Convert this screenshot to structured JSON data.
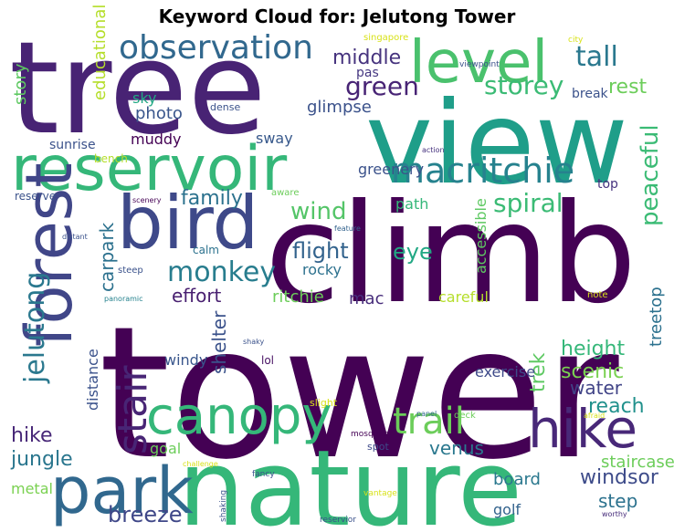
{
  "chart_data": {
    "type": "wordcloud",
    "title": "Keyword Cloud for: Jelutong Tower",
    "colormap": "viridis",
    "background": "#ffffff",
    "words": [
      {
        "text": "tower",
        "color": "#440154"
      },
      {
        "text": "tree",
        "color": "#482374"
      },
      {
        "text": "climb",
        "color": "#440154"
      },
      {
        "text": "view",
        "color": "#1f9e89"
      },
      {
        "text": "nature",
        "color": "#35b779"
      },
      {
        "text": "reservoir",
        "color": "#35b779"
      },
      {
        "text": "bird",
        "color": "#3e4989"
      },
      {
        "text": "forest",
        "color": "#404688"
      },
      {
        "text": "level",
        "color": "#4ac16d"
      },
      {
        "text": "park",
        "color": "#31688e"
      },
      {
        "text": "canopy",
        "color": "#35b779"
      },
      {
        "text": "hike",
        "color": "#482878"
      },
      {
        "text": "observation",
        "color": "#31688e"
      },
      {
        "text": "macritchie",
        "color": "#26828e"
      },
      {
        "text": "trail",
        "color": "#6ccd5a"
      },
      {
        "text": "stair",
        "color": "#482575"
      },
      {
        "text": "monkey",
        "color": "#287d8e"
      },
      {
        "text": "jelutong",
        "color": "#2a788e"
      },
      {
        "text": "tall",
        "color": "#2a788e"
      },
      {
        "text": "green",
        "color": "#482475"
      },
      {
        "text": "storey",
        "color": "#3bbb75"
      },
      {
        "text": "spiral",
        "color": "#3bbb75"
      },
      {
        "text": "peaceful",
        "color": "#3bbb75"
      },
      {
        "text": "family",
        "color": "#2c728e"
      },
      {
        "text": "wind",
        "color": "#54c568"
      },
      {
        "text": "flight",
        "color": "#33638d"
      },
      {
        "text": "eye",
        "color": "#22a884"
      },
      {
        "text": "middle",
        "color": "#46337e"
      },
      {
        "text": "rest",
        "color": "#6ccd5a"
      },
      {
        "text": "effort",
        "color": "#481f70"
      },
      {
        "text": "carpark",
        "color": "#2c718e"
      },
      {
        "text": "hike",
        "color": "#482878"
      },
      {
        "text": "jungle",
        "color": "#2a768e"
      },
      {
        "text": "breeze",
        "color": "#3f4788"
      },
      {
        "text": "venus",
        "color": "#2a788e"
      },
      {
        "text": "windsor",
        "color": "#3e4c8a"
      },
      {
        "text": "step",
        "color": "#2c728e"
      },
      {
        "text": "height",
        "color": "#35b779"
      },
      {
        "text": "scenic",
        "color": "#7ad151"
      },
      {
        "text": "water",
        "color": "#414487"
      },
      {
        "text": "reach",
        "color": "#21918c"
      },
      {
        "text": "trek",
        "color": "#5ec962"
      },
      {
        "text": "treetop",
        "color": "#2c718e"
      },
      {
        "text": "shelter",
        "color": "#3b528b"
      },
      {
        "text": "distance",
        "color": "#3b528b"
      },
      {
        "text": "staircase",
        "color": "#6ccd5a"
      },
      {
        "text": "board",
        "color": "#2a788e"
      },
      {
        "text": "golf",
        "color": "#33638d"
      },
      {
        "text": "metal",
        "color": "#7ad151"
      },
      {
        "text": "goal",
        "color": "#6ccd5a"
      },
      {
        "text": "educational",
        "color": "#b5de2b"
      },
      {
        "text": "story",
        "color": "#5ec962"
      },
      {
        "text": "sky",
        "color": "#22a884"
      },
      {
        "text": "photo",
        "color": "#39568c"
      },
      {
        "text": "muddy",
        "color": "#440154"
      },
      {
        "text": "glimpse",
        "color": "#3b528b"
      },
      {
        "text": "sway",
        "color": "#38598c"
      },
      {
        "text": "pas",
        "color": "#453781"
      },
      {
        "text": "break",
        "color": "#3b528b"
      },
      {
        "text": "greenery",
        "color": "#3b528b"
      },
      {
        "text": "top",
        "color": "#46327e"
      },
      {
        "text": "path",
        "color": "#35b779"
      },
      {
        "text": "rocky",
        "color": "#2c718e"
      },
      {
        "text": "ritchie",
        "color": "#6ccd5a"
      },
      {
        "text": "mac",
        "color": "#472d7b"
      },
      {
        "text": "careful",
        "color": "#b5de2b"
      },
      {
        "text": "accessible",
        "color": "#5ec962"
      },
      {
        "text": "exercise",
        "color": "#3e4a89"
      },
      {
        "text": "windy",
        "color": "#39568c"
      },
      {
        "text": "lol",
        "color": "#471063"
      },
      {
        "text": "calm",
        "color": "#2c728e"
      },
      {
        "text": "reserve",
        "color": "#3b528b"
      },
      {
        "text": "sunrise",
        "color": "#3b528b"
      },
      {
        "text": "bench",
        "color": "#b5de2b"
      },
      {
        "text": "dense",
        "color": "#3b528b"
      },
      {
        "text": "singapore",
        "color": "#d8e219"
      },
      {
        "text": "city",
        "color": "#d8e219"
      },
      {
        "text": "viewpoint",
        "color": "#3b528b"
      },
      {
        "text": "move",
        "color": "#482475"
      },
      {
        "text": "action",
        "color": "#46327e"
      },
      {
        "text": "aware",
        "color": "#6ccd5a"
      },
      {
        "text": "scenery",
        "color": "#440154"
      },
      {
        "text": "feature",
        "color": "#33638d"
      },
      {
        "text": "distant",
        "color": "#3b528b"
      },
      {
        "text": "steep",
        "color": "#3b528b"
      },
      {
        "text": "note",
        "color": "#d8e219"
      },
      {
        "text": "panoramic",
        "color": "#26828e"
      },
      {
        "text": "shaky",
        "color": "#3b528b"
      },
      {
        "text": "slight",
        "color": "#d8e219"
      },
      {
        "text": "deck",
        "color": "#6ccd5a"
      },
      {
        "text": "panel",
        "color": "#31688e"
      },
      {
        "text": "afraid",
        "color": "#d8e219"
      },
      {
        "text": "mosquito",
        "color": "#440154"
      },
      {
        "text": "spot",
        "color": "#3e4989"
      },
      {
        "text": "challenge",
        "color": "#d8e219"
      },
      {
        "text": "fancy",
        "color": "#3b528b"
      },
      {
        "text": "vantage",
        "color": "#d8e219"
      },
      {
        "text": "shaking",
        "color": "#3b528b"
      },
      {
        "text": "reservior",
        "color": "#3b528b"
      },
      {
        "text": "worthy",
        "color": "#472d7b"
      },
      {
        "text": "strong",
        "color": "#b5de2b"
      }
    ]
  }
}
